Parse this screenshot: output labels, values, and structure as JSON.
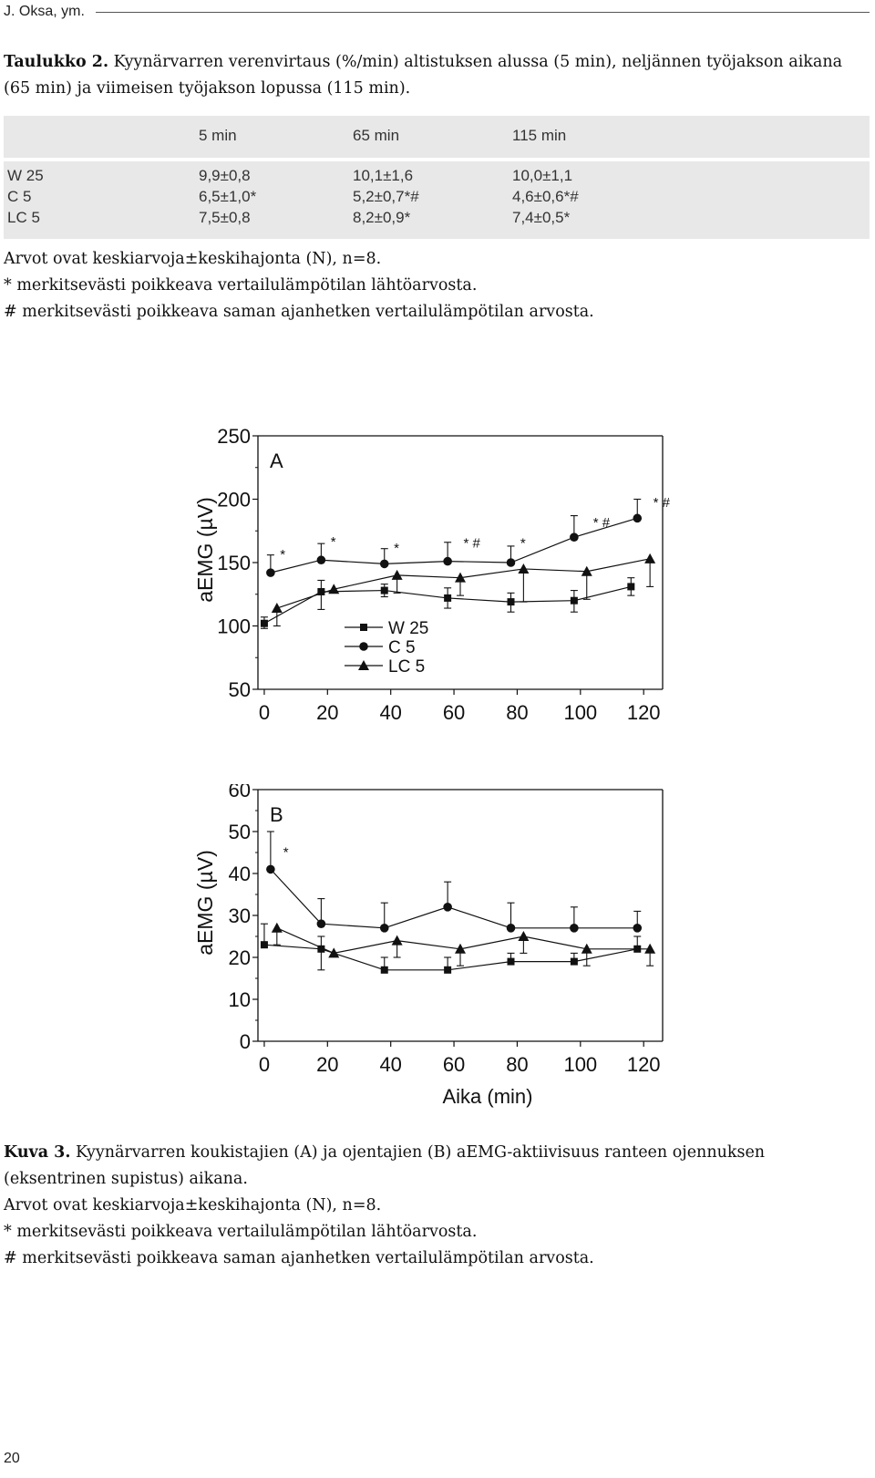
{
  "running_head": "J. Oksa, ym.",
  "table_caption": {
    "label": "Taulukko 2.",
    "text": "Kyynärvarren verenvirtaus (%/min) altistuksen alussa (5 min), neljännen työjakson aikana (65 min) ja viimeisen työjakson lopussa (115 min)."
  },
  "table": {
    "columns": [
      "5 min",
      "65 min",
      "115 min"
    ],
    "rows": [
      {
        "label": "W 25",
        "cells": [
          "9,9±0,8",
          "10,1±1,6",
          "10,0±1,1"
        ]
      },
      {
        "label": "C 5",
        "cells": [
          "6,5±1,0*",
          "5,2±0,7*#",
          "4,6±0,6*#"
        ]
      },
      {
        "label": "LC 5",
        "cells": [
          "7,5±0,8",
          "8,2±0,9*",
          "7,4±0,5*"
        ]
      }
    ]
  },
  "table_notes": [
    "Arvot ovat keskiarvoja±keskihajonta (N), n=8.",
    "* merkitsevästi poikkeava vertailulämpötilan lähtöarvosta.",
    "# merkitsevästi poikkeava saman ajanhetken vertailulämpötilan arvosta."
  ],
  "chart_data": [
    {
      "type": "line",
      "panel_label": "A",
      "ylabel": "aEMG (µV)",
      "xlabel": "",
      "xlim": [
        -2,
        126
      ],
      "ylim": [
        50,
        250
      ],
      "xticks": [
        "0",
        "20",
        "40",
        "60",
        "80",
        "100",
        "120"
      ],
      "yticks": [
        "50",
        "100",
        "150",
        "200",
        "250"
      ],
      "legend": [
        "W 25",
        "C 5",
        "LC 5"
      ],
      "legend_position": "bottom-center",
      "series": [
        {
          "name": "W 25",
          "marker": "square",
          "x": [
            0,
            18,
            38,
            58,
            78,
            98,
            116
          ],
          "y": [
            102,
            127,
            128,
            122,
            119,
            120,
            131
          ],
          "err_up": [
            5,
            9,
            5,
            8,
            7,
            8,
            7
          ],
          "err_down": [
            4,
            14,
            5,
            8,
            8,
            9,
            7
          ]
        },
        {
          "name": "C 5",
          "marker": "circle",
          "x": [
            2,
            18,
            38,
            58,
            78,
            98,
            118
          ],
          "y": [
            142,
            152,
            149,
            151,
            150,
            170,
            185
          ],
          "err_up": [
            14,
            13,
            12,
            15,
            13,
            17,
            15
          ],
          "err_down": [
            0,
            0,
            0,
            0,
            0,
            0,
            0
          ]
        },
        {
          "name": "LC 5",
          "marker": "triangle",
          "x": [
            4,
            22,
            42,
            62,
            82,
            102,
            122
          ],
          "y": [
            114,
            129,
            140,
            138,
            145,
            143,
            153
          ],
          "err_up": [
            0,
            0,
            0,
            0,
            0,
            0,
            0
          ],
          "err_down": [
            14,
            0,
            14,
            14,
            26,
            22,
            22
          ]
        }
      ],
      "annotations": [
        {
          "x": 5,
          "y": 153,
          "text": "*"
        },
        {
          "x": 21,
          "y": 163,
          "text": "*"
        },
        {
          "x": 41,
          "y": 158,
          "text": "*"
        },
        {
          "x": 63,
          "y": 162,
          "text": "* #"
        },
        {
          "x": 81,
          "y": 162,
          "text": "*"
        },
        {
          "x": 104,
          "y": 178,
          "text": "* #"
        },
        {
          "x": 123,
          "y": 194,
          "text": "* #"
        }
      ]
    },
    {
      "type": "line",
      "panel_label": "B",
      "ylabel": "aEMG (µV)",
      "xlabel": "Aika (min)",
      "xlim": [
        -2,
        126
      ],
      "ylim": [
        0,
        60
      ],
      "xticks": [
        "0",
        "20",
        "40",
        "60",
        "80",
        "100",
        "120"
      ],
      "yticks": [
        "0",
        "10",
        "20",
        "30",
        "40",
        "50",
        "60"
      ],
      "series": [
        {
          "name": "W 25",
          "marker": "square",
          "x": [
            0,
            18,
            38,
            58,
            78,
            98,
            118
          ],
          "y": [
            23,
            22,
            17,
            17,
            19,
            19,
            22
          ],
          "err_up": [
            5,
            3,
            3,
            3,
            2,
            2,
            3
          ],
          "err_down": [
            0,
            5,
            0,
            0,
            0,
            0,
            0
          ]
        },
        {
          "name": "C 5",
          "marker": "circle",
          "x": [
            2,
            18,
            38,
            58,
            78,
            98,
            118
          ],
          "y": [
            41,
            28,
            27,
            32,
            27,
            27,
            27
          ],
          "err_up": [
            9,
            6,
            6,
            6,
            6,
            5,
            4
          ],
          "err_down": [
            0,
            0,
            0,
            0,
            0,
            0,
            0
          ]
        },
        {
          "name": "LC 5",
          "marker": "triangle",
          "x": [
            4,
            22,
            42,
            62,
            82,
            102,
            122
          ],
          "y": [
            27,
            21,
            24,
            22,
            25,
            22,
            22
          ],
          "err_up": [
            0,
            0,
            0,
            0,
            0,
            0,
            0
          ],
          "err_down": [
            4,
            0,
            4,
            4,
            4,
            4,
            4
          ]
        }
      ],
      "annotations": [
        {
          "x": 6,
          "y": 44,
          "text": "*"
        }
      ]
    }
  ],
  "figure_caption": {
    "label": "Kuva 3.",
    "text": "Kyynärvarren koukistajien (A) ja ojentajien (B) aEMG-aktiivisuus ranteen ojennuksen (eksentrinen supistus) aikana."
  },
  "figure_notes": [
    "Arvot ovat keskiarvoja±keskihajonta (N), n=8.",
    "* merkitsevästi poikkeava vertailulämpötilan lähtöarvosta.",
    "# merkitsevästi poikkeava saman ajanhetken vertailulämpötilan arvosta."
  ],
  "page_number": "20"
}
